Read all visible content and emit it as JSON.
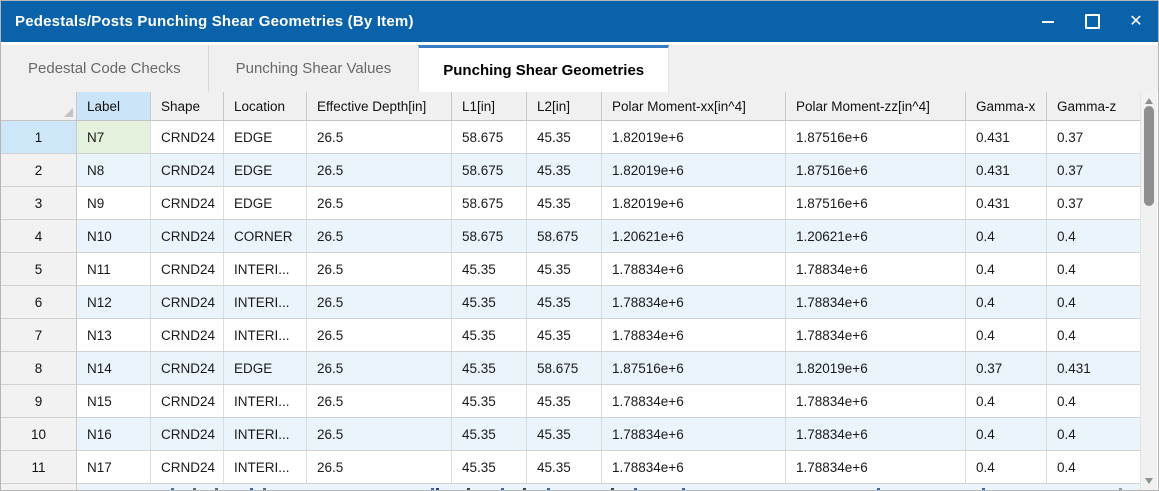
{
  "window": {
    "title": "Pedestals/Posts Punching Shear Geometries (By Item)",
    "controls": {
      "minimize": "minimize",
      "maximize": "maximize",
      "close": "close"
    }
  },
  "tabs": [
    {
      "label": "Pedestal Code Checks",
      "active": false
    },
    {
      "label": "Punching Shear Values",
      "active": false
    },
    {
      "label": "Punching Shear Geometries",
      "active": true
    }
  ],
  "table": {
    "headers": {
      "label": "Label",
      "shape": "Shape",
      "location": "Location",
      "depth": "Effective Depth[in]",
      "l1": "L1[in]",
      "l2": "L2[in]",
      "pmxx": "Polar Moment-xx[in^4]",
      "pmzz": "Polar Moment-zz[in^4]",
      "gx": "Gamma-x",
      "gz": "Gamma-z"
    },
    "rows": [
      {
        "num": "1",
        "label": "N7",
        "shape": "CRND24",
        "location": "EDGE",
        "depth": "26.5",
        "l1": "58.675",
        "l2": "45.35",
        "pmxx": "1.82019e+6",
        "pmzz": "1.87516e+6",
        "gx": "0.431",
        "gz": "0.37"
      },
      {
        "num": "2",
        "label": "N8",
        "shape": "CRND24",
        "location": "EDGE",
        "depth": "26.5",
        "l1": "58.675",
        "l2": "45.35",
        "pmxx": "1.82019e+6",
        "pmzz": "1.87516e+6",
        "gx": "0.431",
        "gz": "0.37"
      },
      {
        "num": "3",
        "label": "N9",
        "shape": "CRND24",
        "location": "EDGE",
        "depth": "26.5",
        "l1": "58.675",
        "l2": "45.35",
        "pmxx": "1.82019e+6",
        "pmzz": "1.87516e+6",
        "gx": "0.431",
        "gz": "0.37"
      },
      {
        "num": "4",
        "label": "N10",
        "shape": "CRND24",
        "location": "CORNER",
        "depth": "26.5",
        "l1": "58.675",
        "l2": "58.675",
        "pmxx": "1.20621e+6",
        "pmzz": "1.20621e+6",
        "gx": "0.4",
        "gz": "0.4"
      },
      {
        "num": "5",
        "label": "N11",
        "shape": "CRND24",
        "location": "INTERI...",
        "depth": "26.5",
        "l1": "45.35",
        "l2": "45.35",
        "pmxx": "1.78834e+6",
        "pmzz": "1.78834e+6",
        "gx": "0.4",
        "gz": "0.4"
      },
      {
        "num": "6",
        "label": "N12",
        "shape": "CRND24",
        "location": "INTERI...",
        "depth": "26.5",
        "l1": "45.35",
        "l2": "45.35",
        "pmxx": "1.78834e+6",
        "pmzz": "1.78834e+6",
        "gx": "0.4",
        "gz": "0.4"
      },
      {
        "num": "7",
        "label": "N13",
        "shape": "CRND24",
        "location": "INTERI...",
        "depth": "26.5",
        "l1": "45.35",
        "l2": "45.35",
        "pmxx": "1.78834e+6",
        "pmzz": "1.78834e+6",
        "gx": "0.4",
        "gz": "0.4"
      },
      {
        "num": "8",
        "label": "N14",
        "shape": "CRND24",
        "location": "EDGE",
        "depth": "26.5",
        "l1": "45.35",
        "l2": "58.675",
        "pmxx": "1.87516e+6",
        "pmzz": "1.82019e+6",
        "gx": "0.37",
        "gz": "0.431"
      },
      {
        "num": "9",
        "label": "N15",
        "shape": "CRND24",
        "location": "INTERI...",
        "depth": "26.5",
        "l1": "45.35",
        "l2": "45.35",
        "pmxx": "1.78834e+6",
        "pmzz": "1.78834e+6",
        "gx": "0.4",
        "gz": "0.4"
      },
      {
        "num": "10",
        "label": "N16",
        "shape": "CRND24",
        "location": "INTERI...",
        "depth": "26.5",
        "l1": "45.35",
        "l2": "45.35",
        "pmxx": "1.78834e+6",
        "pmzz": "1.78834e+6",
        "gx": "0.4",
        "gz": "0.4"
      },
      {
        "num": "11",
        "label": "N17",
        "shape": "CRND24",
        "location": "INTERI...",
        "depth": "26.5",
        "l1": "45.35",
        "l2": "45.35",
        "pmxx": "1.78834e+6",
        "pmzz": "1.78834e+6",
        "gx": "0.4",
        "gz": "0.4"
      }
    ],
    "selection": {
      "row": "1",
      "column": "Label",
      "cell_value": "N7"
    }
  },
  "colors": {
    "titlebar": "#0a62ab",
    "tab_accent": "#3a7cc3",
    "selected_column_header": "#cbe4f7",
    "selected_row_header": "#cde6f8",
    "selected_cell": "#e3f1dd",
    "alt_row": "#eaf4fb"
  }
}
